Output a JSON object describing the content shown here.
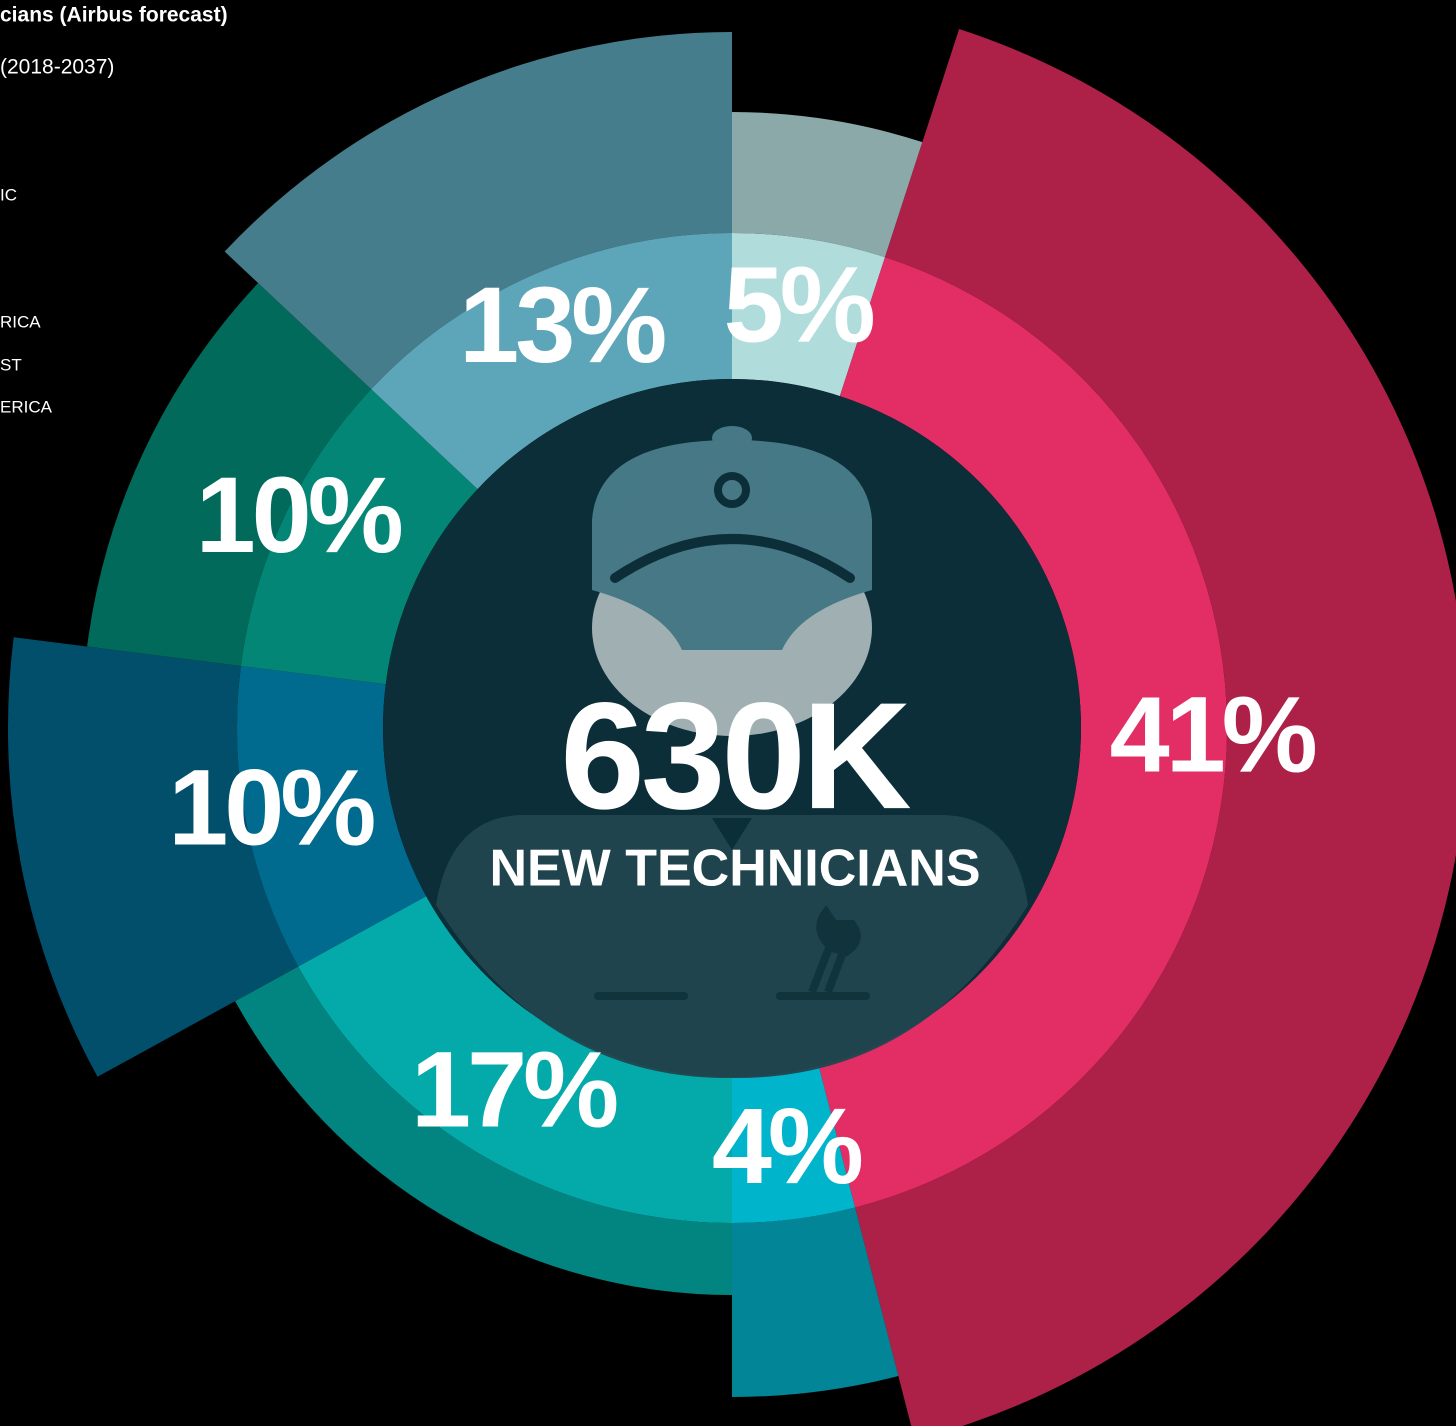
{
  "chart_data": {
    "type": "rose-donut",
    "title": "cians (Airbus forecast)",
    "subtitle": "(2018-2037)",
    "legend_fragments": [
      "IC",
      "RICA",
      "ST",
      "ERICA"
    ],
    "values": [
      5,
      41,
      4,
      17,
      10,
      10,
      13
    ],
    "value_labels": [
      "5%",
      "41%",
      "4%",
      "17%",
      "10%",
      "10%",
      "13%"
    ],
    "colors": [
      "#b0dcdc",
      "#e32d65",
      "#00b4cc",
      "#04aaaa",
      "#006b8f",
      "#038675",
      "#5da5b8"
    ],
    "outer_colors": [
      "#8aa9a8",
      "#ad2149",
      "#038598",
      "#028481",
      "#024f6c",
      "#016a5b",
      "#467d8c"
    ],
    "center_value": "630K",
    "center_label": "NEW TECHNICIANS"
  }
}
